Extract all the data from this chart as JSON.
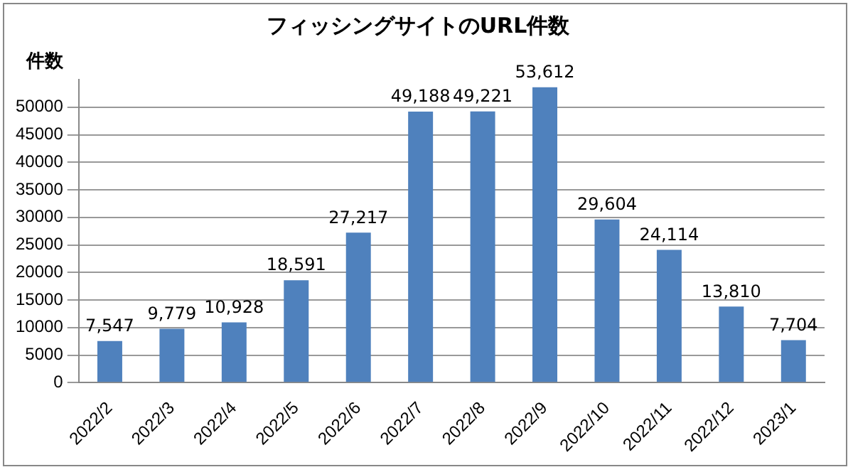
{
  "chart_data": {
    "type": "bar",
    "title": "フィッシングサイトのURL件数",
    "ylabel": "件数",
    "categories": [
      "2022/2",
      "2022/3",
      "2022/4",
      "2022/5",
      "2022/6",
      "2022/7",
      "2022/8",
      "2022/9",
      "2022/10",
      "2022/11",
      "2022/12",
      "2023/1"
    ],
    "values": [
      7547,
      9779,
      10928,
      18591,
      27217,
      49188,
      49221,
      53612,
      29604,
      24114,
      13810,
      7704
    ],
    "value_labels": [
      "7,547",
      "9,779",
      "10,928",
      "18,591",
      "27,217",
      "49,188",
      "49,221",
      "53,612",
      "29,604",
      "24,114",
      "13,810",
      "7,704"
    ],
    "color": "#4f81bd",
    "ylim": [
      0,
      55000
    ],
    "yticks": [
      0,
      5000,
      10000,
      15000,
      20000,
      25000,
      30000,
      35000,
      40000,
      45000,
      50000
    ],
    "grid": "y",
    "legend": false
  }
}
